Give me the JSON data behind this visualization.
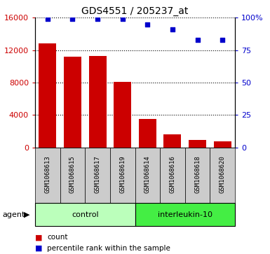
{
  "title": "GDS4551 / 205237_at",
  "samples": [
    "GSM1068613",
    "GSM1068615",
    "GSM1068617",
    "GSM1068619",
    "GSM1068614",
    "GSM1068616",
    "GSM1068618",
    "GSM1068620"
  ],
  "counts": [
    12800,
    11200,
    11300,
    8100,
    3500,
    1600,
    900,
    700
  ],
  "percentile_ranks": [
    99,
    99,
    99,
    99,
    95,
    91,
    83,
    83
  ],
  "groups": [
    {
      "label": "control",
      "start": 0,
      "end": 4,
      "color": "#bbffbb"
    },
    {
      "label": "interleukin-10",
      "start": 4,
      "end": 8,
      "color": "#44ee44"
    }
  ],
  "bar_color": "#cc0000",
  "dot_color": "#0000cc",
  "ylim_left": [
    0,
    16000
  ],
  "ylim_right": [
    0,
    100
  ],
  "yticks_left": [
    0,
    4000,
    8000,
    12000,
    16000
  ],
  "yticks_right": [
    0,
    25,
    50,
    75,
    100
  ],
  "yticklabels_right": [
    "0",
    "25",
    "50",
    "75",
    "100%"
  ],
  "agent_label": "agent",
  "legend_count_label": "count",
  "legend_pct_label": "percentile rank within the sample",
  "sample_box_color": "#cccccc",
  "plot_bg_color": "#ffffff"
}
